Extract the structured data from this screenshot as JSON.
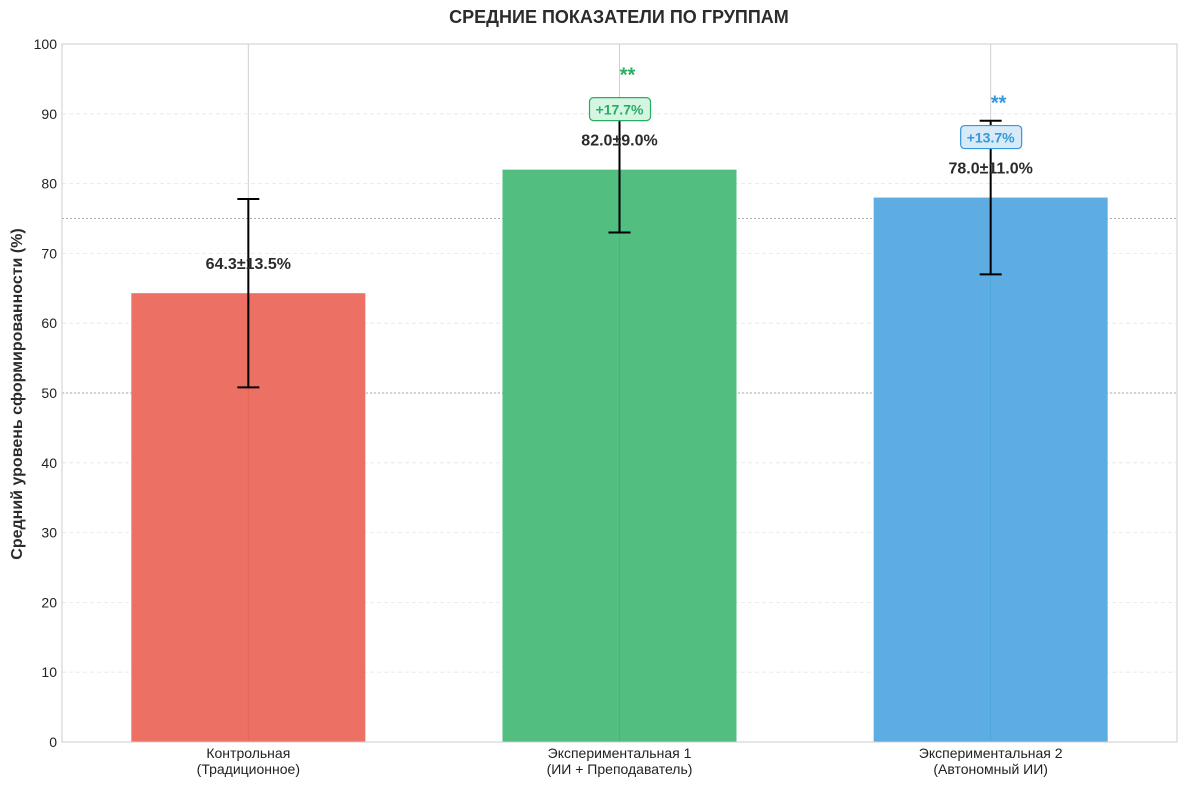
{
  "chart_data": {
    "type": "bar",
    "title": "СРЕДНИЕ ПОКАЗАТЕЛИ ПО ГРУППАМ",
    "xlabel": "",
    "ylabel": "Средний уровень сформированности (%)",
    "ylim": [
      0,
      100
    ],
    "yticks": [
      0,
      10,
      20,
      30,
      40,
      50,
      60,
      70,
      80,
      90,
      100
    ],
    "grid": true,
    "reference_lines": [
      75,
      50
    ],
    "categories": [
      [
        "Контрольная",
        "(Традиционное)"
      ],
      [
        "Экспериментальная 1",
        "(ИИ + Преподаватель)"
      ],
      [
        "Экспериментальная 2",
        "(Автономный ИИ)"
      ]
    ],
    "values": [
      64.3,
      82.0,
      78.0
    ],
    "errors": [
      13.5,
      9.0,
      11.0
    ],
    "value_labels": [
      "64.3±13.5%",
      "82.0±9.0%",
      "78.0±11.0%"
    ],
    "improvement_labels": [
      null,
      "+17.7%",
      "+13.7%"
    ],
    "significance": [
      null,
      "**",
      "**"
    ],
    "colors": [
      "#ec7063",
      "#52be80",
      "#5dade2"
    ],
    "accent_colors": [
      "#e74c3c",
      "#27ae60",
      "#3498db"
    ],
    "badge_fills": [
      null,
      "#d5f5e3",
      "#d6eaf8"
    ]
  }
}
